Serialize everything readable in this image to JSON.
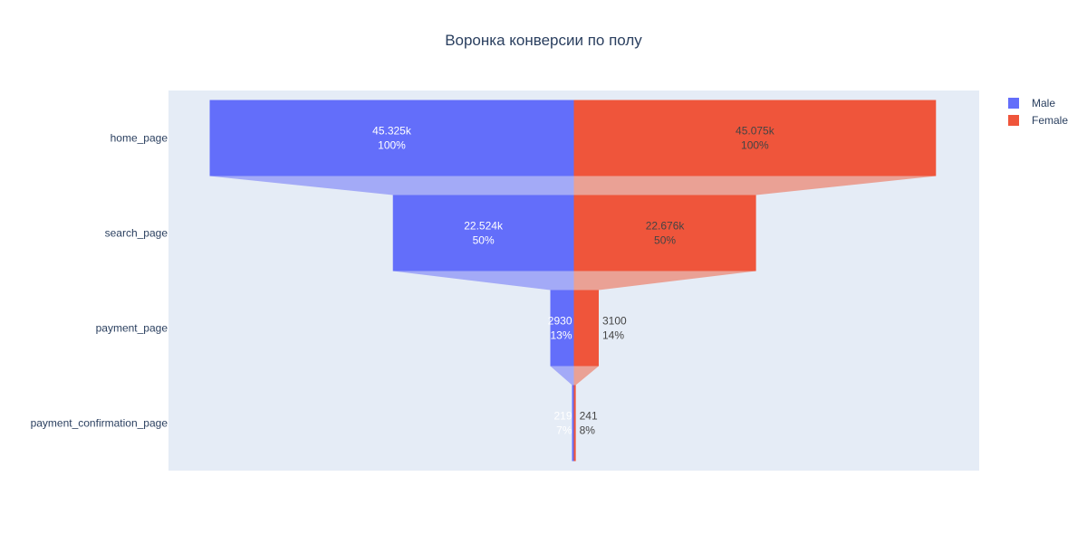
{
  "chart_data": {
    "type": "funnel",
    "title": "Воронка конверсии по полу",
    "categories": [
      "home_page",
      "search_page",
      "payment_page",
      "payment_confirmation_page"
    ],
    "series": [
      {
        "name": "Male",
        "values": [
          45325,
          22524,
          2930,
          219
        ],
        "labels": [
          "45.325k",
          "22.524k",
          "2930",
          "219"
        ],
        "percents": [
          "100%",
          "50%",
          "13%",
          "7%"
        ],
        "color": "#636efa",
        "connector_color": "#a3aaf7",
        "text_color": "#ffffff"
      },
      {
        "name": "Female",
        "values": [
          45075,
          22676,
          3100,
          241
        ],
        "labels": [
          "45.075k",
          "22.676k",
          "3100",
          "241"
        ],
        "percents": [
          "100%",
          "50%",
          "14%",
          "8%"
        ],
        "color": "#ef553b",
        "connector_color": "#eaa195",
        "text_color": "#444444"
      }
    ],
    "legend_position": "top-right",
    "background_color": "#e5ecf6"
  }
}
